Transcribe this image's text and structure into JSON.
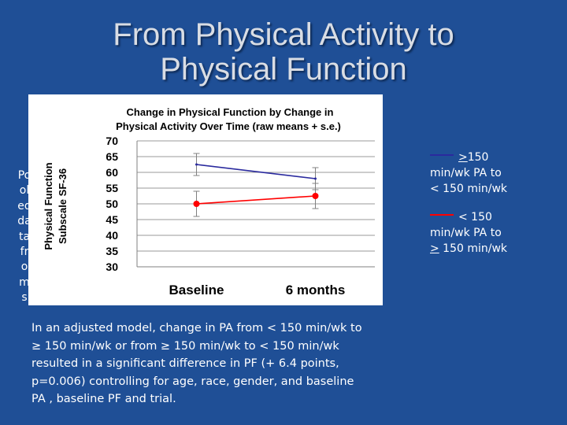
{
  "slide": {
    "title_line1": "From Physical Activity to",
    "title_line2": "Physical Function",
    "vertical_text": "Pooled data from s",
    "footnote_lines": [
      "In an adjusted model, change in PA from < 150 min/wk to",
      "≥ 150 min/wk or from ≥ 150 min/wk to < 150 min/wk",
      "resulted in a significant difference in PF (+ 6.4 points,",
      "p=0.006) controlling for age, race, gender, and baseline",
      "PA , baseline PF and trial."
    ]
  },
  "legend": [
    {
      "id": "ge150-to-lt150",
      "color": "#2a2a9e",
      "line1_sym": ">",
      "line1_rest": "150",
      "line2": "min/wk PA to",
      "line3_sym": "<",
      "line3_rest": " 150 min/wk"
    },
    {
      "id": "lt150-to-ge150",
      "color": "#ff0000",
      "line1_sym": "<",
      "line1_rest": " 150",
      "line2": "min/wk PA to",
      "line3_sym": ">",
      "line3_rest": " 150 min/wk"
    }
  ],
  "chart_data": {
    "type": "line",
    "title_line1": "Change in Physical Function by Change in",
    "title_line2": "Physical Activity Over Time (raw means + s.e.)",
    "ylabel_line1": "Physical Function",
    "ylabel_line2": "Subscale SF-36",
    "categories": [
      "Baseline",
      "6 months"
    ],
    "ylim": [
      30,
      70
    ],
    "yticks": [
      30,
      35,
      40,
      45,
      50,
      55,
      60,
      65,
      70
    ],
    "series": [
      {
        "key": "ge150-to-lt150",
        "color": "#2a2a9e",
        "values": [
          62.5,
          58
        ],
        "errors": [
          3.5,
          3.5
        ],
        "marker": "none"
      },
      {
        "key": "lt150-to-ge150",
        "color": "#ff0000",
        "values": [
          50,
          52.5
        ],
        "errors": [
          4,
          4
        ],
        "marker": "circle"
      }
    ]
  }
}
